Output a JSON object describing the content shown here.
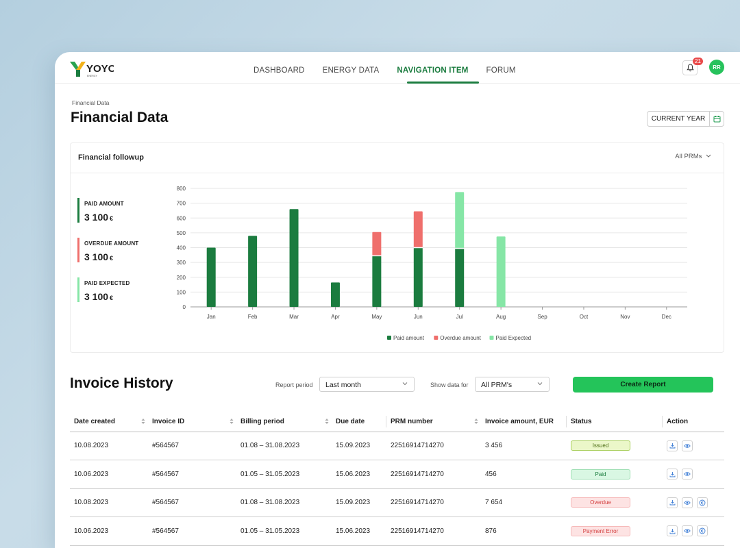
{
  "app": {
    "logo_text": "YOYO",
    "logo_sub": "ENERGY"
  },
  "nav": {
    "items": [
      "DASHBOARD",
      "ENERGY DATA",
      "NAVIGATION ITEM",
      "FORUM"
    ],
    "active": "NAVIGATION ITEM"
  },
  "header": {
    "notifications": "21",
    "avatar_initials": "RR"
  },
  "page": {
    "breadcrumb": "Financial Data",
    "title": "Financial Data",
    "period_button": "CURRENT YEAR"
  },
  "followup": {
    "title": "Financial followup",
    "prm_select": "All PRMs",
    "stats": [
      {
        "label": "PAID AMOUNT",
        "value": "3 100",
        "currency": "€",
        "color": "#1b7c3f"
      },
      {
        "label": "OVERDUE AMOUNT",
        "value": "3 100",
        "currency": "€",
        "color": "#ef6f6c"
      },
      {
        "label": "PAID EXPECTED",
        "value": "3 100",
        "currency": "€",
        "color": "#86e6a6"
      }
    ]
  },
  "chart_data": {
    "type": "bar",
    "stacked": true,
    "categories": [
      "Jan",
      "Feb",
      "Mar",
      "Apr",
      "May",
      "Jun",
      "Jul",
      "Aug",
      "Sep",
      "Oct",
      "Nov",
      "Dec"
    ],
    "series": [
      {
        "name": "Paid amount",
        "color": "#1b7c3f",
        "values": [
          400,
          480,
          660,
          165,
          345,
          400,
          395,
          0,
          0,
          0,
          0,
          0
        ]
      },
      {
        "name": "Overdue amount",
        "color": "#ef6f6c",
        "values": [
          0,
          0,
          0,
          0,
          160,
          245,
          0,
          0,
          0,
          0,
          0,
          0
        ]
      },
      {
        "name": "Paid Expected",
        "color": "#86e6a6",
        "values": [
          0,
          0,
          0,
          0,
          0,
          0,
          380,
          475,
          0,
          0,
          0,
          0
        ]
      }
    ],
    "yticks": [
      0,
      100,
      200,
      300,
      400,
      500,
      600,
      700,
      800
    ],
    "ylim": [
      0,
      800
    ],
    "grid": true,
    "legend_position": "bottom"
  },
  "invoices": {
    "title": "Invoice History",
    "report_period_label": "Report period",
    "report_period_value": "Last month",
    "show_data_label": "Show data for",
    "show_data_value": "All PRM's",
    "create_button": "Create Report",
    "columns": [
      "Date created",
      "Invoice ID",
      "Billing period",
      "Due date",
      "PRM number",
      "Invoice amount, EUR",
      "Status",
      "Action"
    ],
    "rows": [
      {
        "date": "10.08.2023",
        "id": "#564567",
        "billing": "01.08 – 31.08.2023",
        "due": "15.09.2023",
        "prm": "22516914714270",
        "amount": "3 456",
        "status": "Issued",
        "actions": 2
      },
      {
        "date": "10.06.2023",
        "id": "#564567",
        "billing": "01.05 – 31.05.2023",
        "due": "15.06.2023",
        "prm": "22516914714270",
        "amount": "456",
        "status": "Paid",
        "actions": 2
      },
      {
        "date": "10.08.2023",
        "id": "#564567",
        "billing": "01.08 – 31.08.2023",
        "due": "15.09.2023",
        "prm": "22516914714270",
        "amount": "7 654",
        "status": "Overdue",
        "actions": 3
      },
      {
        "date": "10.06.2023",
        "id": "#564567",
        "billing": "01.05 – 31.05.2023",
        "due": "15.06.2023",
        "prm": "22516914714270",
        "amount": "876",
        "status": "Payment Error",
        "actions": 3
      }
    ],
    "status_colors": {
      "Issued": {
        "bg": "#ebf7c9",
        "border": "#a9cf5c",
        "text": "#4a6b12"
      },
      "Paid": {
        "bg": "#d9f7e3",
        "border": "#9fdfb4",
        "text": "#1b7c3f"
      },
      "Overdue": {
        "bg": "#fde3e3",
        "border": "#f6b9b9",
        "text": "#d23c3c"
      },
      "Payment Error": {
        "bg": "#fde3e3",
        "border": "#f6b9b9",
        "text": "#d23c3c"
      }
    }
  }
}
